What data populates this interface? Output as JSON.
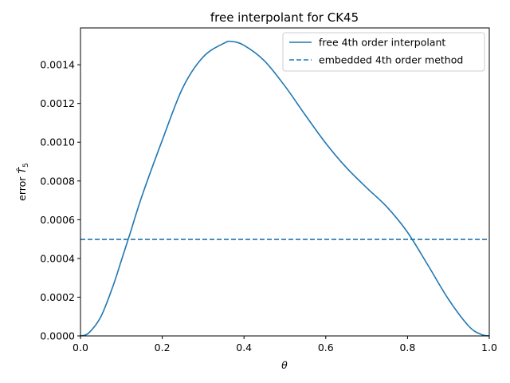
{
  "chart_data": {
    "type": "line",
    "title": "free interpolant for CK45",
    "xlabel": "θ",
    "ylabel_prefix": "error ",
    "ylabel_symbol": "T̂",
    "ylabel_subscript": "5",
    "xlim": [
      0.0,
      1.0
    ],
    "ylim": [
      0.0,
      0.00159
    ],
    "x_ticks": [
      0.0,
      0.2,
      0.4,
      0.6,
      0.8,
      1.0
    ],
    "x_tick_labels": [
      "0.0",
      "0.2",
      "0.4",
      "0.6",
      "0.8",
      "1.0"
    ],
    "y_ticks": [
      0.0,
      0.0002,
      0.0004,
      0.0006,
      0.0008,
      0.001,
      0.0012,
      0.0014
    ],
    "y_tick_labels": [
      "0.0000",
      "0.0002",
      "0.0004",
      "0.0006",
      "0.0008",
      "0.0010",
      "0.0012",
      "0.0014"
    ],
    "grid": false,
    "legend_position": "top-right",
    "series": [
      {
        "name": "free 4th order interpolant",
        "style": "solid",
        "color": "#1f77b4",
        "x": [
          0.0,
          0.02,
          0.05,
          0.08,
          0.1,
          0.12,
          0.15,
          0.2,
          0.25,
          0.3,
          0.35,
          0.37,
          0.4,
          0.45,
          0.5,
          0.55,
          0.6,
          0.65,
          0.7,
          0.75,
          0.8,
          0.85,
          0.9,
          0.95,
          0.98,
          1.0
        ],
        "y": [
          0.0,
          1.5e-05,
          0.0001,
          0.00026,
          0.00039,
          0.00052,
          0.00072,
          0.00101,
          0.00128,
          0.00144,
          0.00151,
          0.00152,
          0.0015,
          0.00142,
          0.00129,
          0.00114,
          0.000995,
          0.00087,
          0.000765,
          0.000665,
          0.000535,
          0.000365,
          0.00019,
          5e-05,
          8e-06,
          0.0
        ]
      },
      {
        "name": "embedded 4th order method",
        "style": "dashed",
        "color": "#1f77b4",
        "x": [
          0.0,
          1.0
        ],
        "y": [
          0.000498,
          0.000498
        ]
      }
    ]
  }
}
